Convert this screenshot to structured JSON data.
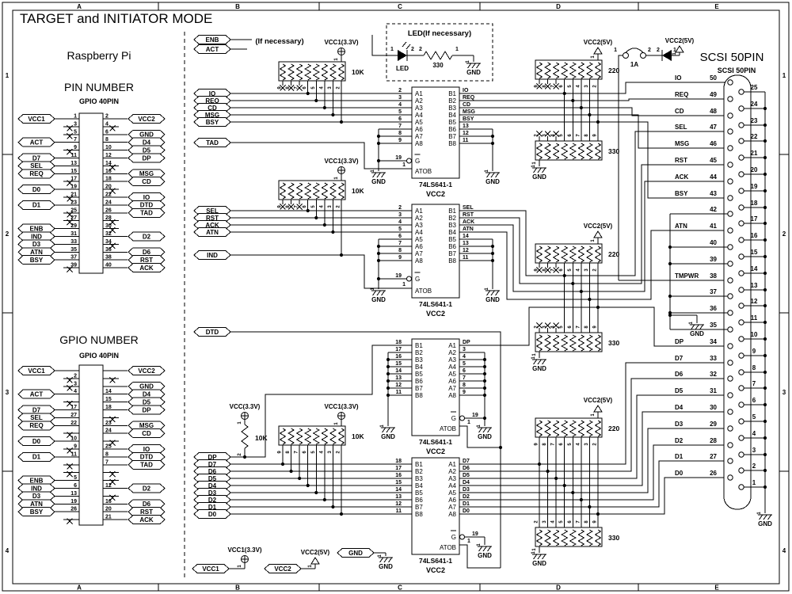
{
  "title": "TARGET and INITIATOR MODE",
  "frame": {
    "cols": [
      "A",
      "B",
      "C",
      "D",
      "E"
    ],
    "rows": [
      "1",
      "2",
      "3",
      "4"
    ]
  },
  "raspberry_pi": {
    "heading": "Raspberry Pi",
    "connectors": [
      {
        "title": "PIN NUMBER",
        "subtitle": "GPIO 40PIN",
        "left": [
          [
            "1",
            "VCC1"
          ],
          [
            "3",
            "x"
          ],
          [
            "5",
            "x"
          ],
          [
            "7",
            "ACT"
          ],
          [
            "9",
            "x"
          ],
          [
            "11",
            "D7"
          ],
          [
            "13",
            "SEL"
          ],
          [
            "15",
            "REQ"
          ],
          [
            "17",
            "x"
          ],
          [
            "19",
            "D0"
          ],
          [
            "21",
            "x"
          ],
          [
            "23",
            "D1"
          ],
          [
            "25",
            "x"
          ],
          [
            "27",
            "x"
          ],
          [
            "29",
            "ENB"
          ],
          [
            "31",
            "IND"
          ],
          [
            "33",
            "D3"
          ],
          [
            "35",
            "ATN"
          ],
          [
            "37",
            "BSY"
          ],
          [
            "39",
            "x"
          ]
        ],
        "right": [
          [
            "2",
            "VCC2"
          ],
          [
            "4",
            "x"
          ],
          [
            "6",
            "GND"
          ],
          [
            "8",
            "D4"
          ],
          [
            "10",
            "D5"
          ],
          [
            "12",
            "DP"
          ],
          [
            "14",
            "x"
          ],
          [
            "16",
            "MSG"
          ],
          [
            "18",
            "CD"
          ],
          [
            "20",
            "x"
          ],
          [
            "22",
            "IO"
          ],
          [
            "24",
            "DTD"
          ],
          [
            "26",
            "TAD"
          ],
          [
            "28",
            "x"
          ],
          [
            "30",
            "x"
          ],
          [
            "32",
            "D2"
          ],
          [
            "34",
            "x"
          ],
          [
            "36",
            "D6"
          ],
          [
            "38",
            "RST"
          ],
          [
            "40",
            "ACK"
          ]
        ]
      },
      {
        "title": "GPIO NUMBER",
        "subtitle": "GPIO 40PIN",
        "left": [
          [
            "",
            "VCC1"
          ],
          [
            "2",
            "x"
          ],
          [
            "3",
            "x"
          ],
          [
            "4",
            "ACT"
          ],
          [
            "",
            "x"
          ],
          [
            "17",
            "D7"
          ],
          [
            "27",
            "SEL"
          ],
          [
            "22",
            "REQ"
          ],
          [
            "",
            "x"
          ],
          [
            "10",
            "D0"
          ],
          [
            "9",
            "x"
          ],
          [
            "11",
            "D1"
          ],
          [
            "",
            "x"
          ],
          [
            "",
            "x"
          ],
          [
            "5",
            "ENB"
          ],
          [
            "6",
            "IND"
          ],
          [
            "13",
            "D3"
          ],
          [
            "19",
            "ATN"
          ],
          [
            "26",
            "BSY"
          ],
          [
            "",
            "x"
          ]
        ],
        "right": [
          [
            "",
            "VCC2"
          ],
          [
            "",
            "x"
          ],
          [
            "",
            "GND"
          ],
          [
            "14",
            "D4"
          ],
          [
            "15",
            "D5"
          ],
          [
            "18",
            "DP"
          ],
          [
            "",
            "x"
          ],
          [
            "23",
            "MSG"
          ],
          [
            "24",
            "CD"
          ],
          [
            "",
            "x"
          ],
          [
            "25",
            "IO"
          ],
          [
            "8",
            "DTD"
          ],
          [
            "7",
            "TAD"
          ],
          [
            "",
            "x"
          ],
          [
            "",
            "x"
          ],
          [
            "12",
            "D2"
          ],
          [
            "",
            "x"
          ],
          [
            "16",
            "D6"
          ],
          [
            "20",
            "RST"
          ],
          [
            "21",
            "ACK"
          ]
        ]
      }
    ]
  },
  "note": "(If necessary)",
  "led_box": {
    "title": "LED(If necessary)",
    "pin_in": "1",
    "led_label": "LED",
    "pin_out": "2",
    "res_in": "2",
    "res_label": "330",
    "res_out": "1",
    "gnd": "GND"
  },
  "nets": {
    "enb": "ENB",
    "act": "ACT",
    "bus1": [
      "IO",
      "REQ",
      "CD",
      "MSG",
      "BSY"
    ],
    "tad": "TAD",
    "bus2": [
      "SEL",
      "RST",
      "ACK",
      "ATN"
    ],
    "ind": "IND",
    "dtd": "DTD",
    "data": [
      "DP",
      "D7",
      "D6",
      "D5",
      "D4",
      "D3",
      "D2",
      "D1",
      "D0"
    ],
    "vcc1": "VCC1",
    "vcc2": "VCC2",
    "gnd": "GND"
  },
  "power": {
    "vcc1_33": "VCC1(3.3V)",
    "vcc_33": "VCC(3.3V)",
    "vcc2_5": "VCC2(5V)",
    "gnd": "GND",
    "pin1": "1",
    "pin2": "2"
  },
  "pullups": {
    "value": "10K",
    "pins": [
      "9",
      "8",
      "7",
      "6",
      "5",
      "4",
      "3",
      "2"
    ]
  },
  "term": {
    "r220": "220",
    "r330": "330",
    "pins_top": [
      "9",
      "8",
      "7",
      "6",
      "5",
      "4",
      "3",
      "2"
    ],
    "pins_bottom": [
      "2",
      "3",
      "4",
      "5",
      "6",
      "7",
      "8",
      "9"
    ]
  },
  "chips": [
    {
      "part": "74LS641-1",
      "power": "VCC2",
      "en_label": "G",
      "en_pin": "19",
      "dir_label": "ATOB",
      "dir_pin": "1",
      "pin_nums": [
        "2",
        "3",
        "4",
        "5",
        "6",
        "7",
        "8",
        "9"
      ],
      "pins_a": [
        "A1",
        "A2",
        "A3",
        "A4",
        "A5",
        "A6",
        "A7",
        "A8"
      ],
      "pins_b": [
        "B1",
        "B2",
        "B3",
        "B4",
        "B5",
        "B6",
        "B7",
        "B8"
      ],
      "out_labels": [
        "IO",
        "REQ",
        "CD",
        "MSG",
        "BSY",
        "13",
        "12",
        "11"
      ]
    },
    {
      "part": "74LS641-1",
      "power": "VCC2",
      "en_label": "G",
      "en_pin": "19",
      "dir_label": "ATOB",
      "dir_pin": "1",
      "pin_nums": [
        "2",
        "3",
        "4",
        "5",
        "6",
        "7",
        "8",
        "9"
      ],
      "pins_a": [
        "A1",
        "A2",
        "A3",
        "A4",
        "A5",
        "A6",
        "A7",
        "A8"
      ],
      "pins_b": [
        "B1",
        "B2",
        "B3",
        "B4",
        "B5",
        "B6",
        "B7",
        "B8"
      ],
      "out_labels": [
        "SEL",
        "RST",
        "ACK",
        "ATN",
        "14",
        "13",
        "12",
        "11"
      ]
    },
    {
      "part": "74LS641-1",
      "power": "VCC2",
      "en_label": "G",
      "en_pin": "19",
      "dir_label": "ATOB",
      "dir_pin": "1",
      "pin_nums": [
        "18",
        "17",
        "16",
        "15",
        "14",
        "13",
        "12",
        "11"
      ],
      "pins_a": [
        "A1",
        "A2",
        "A3",
        "A4",
        "A5",
        "A6",
        "A7",
        "A8"
      ],
      "pins_b": [
        "B1",
        "B2",
        "B3",
        "B4",
        "B5",
        "B6",
        "B7",
        "B8"
      ],
      "out_labels": [
        "DP",
        "3",
        "4",
        "5",
        "6",
        "7",
        "8",
        "9"
      ]
    },
    {
      "part": "74LS641-1",
      "power": "VCC2",
      "en_label": "G",
      "en_pin": "19",
      "dir_label": "ATOB",
      "dir_pin": "1",
      "pin_nums": [
        "18",
        "17",
        "16",
        "15",
        "14",
        "13",
        "12",
        "11"
      ],
      "pins_a": [
        "A1",
        "A2",
        "A3",
        "A4",
        "A5",
        "A6",
        "A7",
        "A8"
      ],
      "pins_b": [
        "B1",
        "B2",
        "B3",
        "B4",
        "B5",
        "B6",
        "B7",
        "B8"
      ],
      "out_labels": [
        "D7",
        "D6",
        "D5",
        "D4",
        "D3",
        "D2",
        "D1",
        "D0"
      ]
    }
  ],
  "fuse": {
    "pin1": "1",
    "value": "1A",
    "pin2": "2",
    "diode_in": "2",
    "diode_out": "1"
  },
  "scsi": {
    "heading": "SCSI 50PIN",
    "connector_label": "SCSI 50PIN",
    "gnd": "GND",
    "left_rows": [
      [
        "50",
        "IO"
      ],
      [
        "49",
        "REQ"
      ],
      [
        "48",
        "CD"
      ],
      [
        "47",
        "SEL"
      ],
      [
        "46",
        "MSG"
      ],
      [
        "45",
        "RST"
      ],
      [
        "44",
        "ACK"
      ],
      [
        "43",
        "BSY"
      ],
      [
        "42",
        ""
      ],
      [
        "41",
        "ATN"
      ],
      [
        "40",
        ""
      ],
      [
        "39",
        ""
      ],
      [
        "38",
        "TMPWR"
      ],
      [
        "37",
        ""
      ],
      [
        "36",
        ""
      ],
      [
        "35",
        ""
      ],
      [
        "34",
        "DP"
      ],
      [
        "33",
        "D7"
      ],
      [
        "32",
        "D6"
      ],
      [
        "31",
        "D5"
      ],
      [
        "30",
        "D4"
      ],
      [
        "29",
        "D3"
      ],
      [
        "28",
        "D2"
      ],
      [
        "27",
        "D1"
      ],
      [
        "26",
        "D0"
      ]
    ],
    "right_nums": [
      "25",
      "24",
      "23",
      "22",
      "21",
      "20",
      "19",
      "18",
      "17",
      "16",
      "15",
      "14",
      "13",
      "12",
      "11",
      "10",
      "9",
      "8",
      "7",
      "6",
      "5",
      "4",
      "3",
      "2",
      "1"
    ]
  }
}
